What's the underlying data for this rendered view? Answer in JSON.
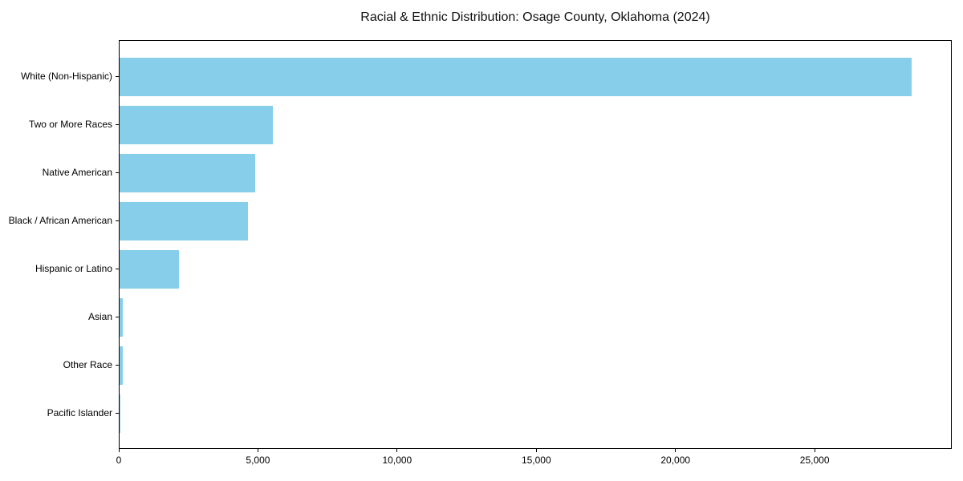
{
  "title": "Racial & Ethnic Distribution: Osage County, Oklahoma (2024)",
  "chart_data": {
    "type": "bar",
    "orientation": "horizontal",
    "title": "Racial & Ethnic Distribution: Osage County, Oklahoma (2024)",
    "xlabel": "",
    "ylabel": "",
    "categories": [
      "White (Non-Hispanic)",
      "Two or More Races",
      "Native American",
      "Black / African American",
      "Hispanic or Latino",
      "Asian",
      "Other Race",
      "Pacific Islander"
    ],
    "values": [
      28500,
      5510,
      4890,
      4620,
      2150,
      115,
      110,
      15
    ],
    "xlim": [
      0,
      29925
    ],
    "x_ticks": [
      0,
      5000,
      10000,
      15000,
      20000,
      25000
    ],
    "x_tick_labels": [
      "0",
      "5,000",
      "10,000",
      "15,000",
      "20,000",
      "25,000"
    ],
    "grid": false,
    "legend": null,
    "bar_color": "#87CEEB",
    "axis_color": "#000000",
    "background_color": "#ffffff"
  }
}
